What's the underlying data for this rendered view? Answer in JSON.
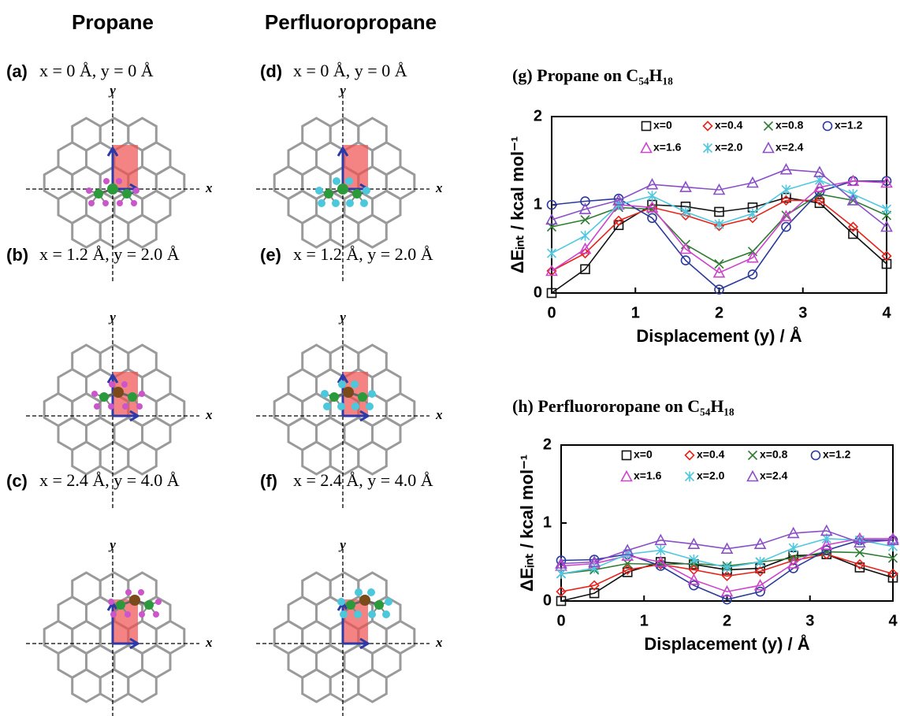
{
  "headings": [
    "Propane",
    "Perfluoropropane"
  ],
  "diagram_axis_labels": {
    "x": "x",
    "y": "y"
  },
  "panels": [
    {
      "tag": "(a)",
      "caption": "x = 0 Å, y = 0 Å"
    },
    {
      "tag": "(b)",
      "caption": "x = 1.2 Å, y = 2.0 Å"
    },
    {
      "tag": "(c)",
      "caption": "x = 2.4 Å, y = 4.0 Å"
    },
    {
      "tag": "(d)",
      "caption": "x = 0 Å, y = 0 Å"
    },
    {
      "tag": "(e)",
      "caption": "x = 1.2 Å, y = 2.0 Å"
    },
    {
      "tag": "(f)",
      "caption": "x = 2.4 Å, y = 4.0 Å"
    }
  ],
  "chart_data": [
    {
      "type": "line",
      "title": "(g) Propane on C₅₄H₁₈",
      "xlabel": "Displacement (y) / Å",
      "ylabel": "ΔEᵢₙₜ / kcal mol⁻¹",
      "x": [
        0,
        0.4,
        0.8,
        1.2,
        1.6,
        2.0,
        2.4,
        2.8,
        3.2,
        3.6,
        4.0
      ],
      "xlim": [
        0,
        4
      ],
      "ylim": [
        0,
        2
      ],
      "xticks": [
        0,
        1,
        2,
        3,
        4
      ],
      "yticks": [
        0,
        1,
        2
      ],
      "series": [
        {
          "name": "x=0",
          "color": "#111111",
          "marker": "square",
          "values": [
            0,
            0.27,
            0.77,
            1.0,
            0.98,
            0.92,
            0.97,
            1.08,
            1.02,
            0.67,
            0.33
          ]
        },
        {
          "name": "x=0.4",
          "color": "#e8221b",
          "marker": "diamond",
          "values": [
            0.25,
            0.45,
            0.82,
            0.97,
            0.88,
            0.76,
            0.85,
            1.05,
            1.05,
            0.75,
            0.42
          ]
        },
        {
          "name": "x=0.8",
          "color": "#2e7d32",
          "marker": "cross",
          "values": [
            0.75,
            0.83,
            0.97,
            0.95,
            0.55,
            0.33,
            0.47,
            0.88,
            1.12,
            1.05,
            0.88
          ]
        },
        {
          "name": "x=1.2",
          "color": "#2b3a9b",
          "marker": "circle",
          "values": [
            1.0,
            1.04,
            1.07,
            0.85,
            0.37,
            0.04,
            0.21,
            0.75,
            1.15,
            1.27,
            1.27
          ]
        },
        {
          "name": "x=1.6",
          "color": "#cc44cc",
          "marker": "triangle",
          "values": [
            0.25,
            0.5,
            1.0,
            0.97,
            0.5,
            0.23,
            0.4,
            0.87,
            1.2,
            1.27,
            1.25
          ]
        },
        {
          "name": "x=2.0",
          "color": "#4fc8e0",
          "marker": "star",
          "values": [
            0.45,
            0.65,
            1.0,
            1.1,
            0.92,
            0.78,
            0.9,
            1.17,
            1.28,
            1.12,
            0.95
          ]
        },
        {
          "name": "x=2.4",
          "color": "#8a4fc8",
          "marker": "triangle",
          "values": [
            0.83,
            0.95,
            1.05,
            1.23,
            1.2,
            1.17,
            1.25,
            1.4,
            1.37,
            1.05,
            0.75
          ]
        }
      ]
    },
    {
      "type": "line",
      "title": "(h) Perfluororopane on C₅₄H₁₈",
      "xlabel": "Displacement (y) / Å",
      "ylabel": "ΔEᵢₙₜ / kcal mol⁻¹",
      "x": [
        0,
        0.4,
        0.8,
        1.2,
        1.6,
        2.0,
        2.4,
        2.8,
        3.2,
        3.6,
        4.0
      ],
      "xlim": [
        0,
        4
      ],
      "ylim": [
        0,
        2
      ],
      "xticks": [
        0,
        1,
        2,
        3,
        4
      ],
      "yticks": [
        0,
        1,
        2
      ],
      "series": [
        {
          "name": "x=0",
          "color": "#111111",
          "marker": "square",
          "values": [
            0,
            0.1,
            0.37,
            0.5,
            0.47,
            0.4,
            0.42,
            0.58,
            0.6,
            0.43,
            0.3
          ]
        },
        {
          "name": "x=0.4",
          "color": "#e8221b",
          "marker": "diamond",
          "values": [
            0.12,
            0.2,
            0.4,
            0.47,
            0.4,
            0.32,
            0.38,
            0.52,
            0.6,
            0.47,
            0.35
          ]
        },
        {
          "name": "x=0.8",
          "color": "#2e7d32",
          "marker": "cross",
          "values": [
            0.35,
            0.4,
            0.48,
            0.47,
            0.48,
            0.45,
            0.5,
            0.55,
            0.63,
            0.62,
            0.55
          ]
        },
        {
          "name": "x=1.2",
          "color": "#2b3a9b",
          "marker": "circle",
          "values": [
            0.52,
            0.53,
            0.6,
            0.45,
            0.2,
            0.02,
            0.12,
            0.42,
            0.65,
            0.78,
            0.78
          ]
        },
        {
          "name": "x=1.6",
          "color": "#cc44cc",
          "marker": "triangle",
          "values": [
            0.45,
            0.48,
            0.58,
            0.5,
            0.27,
            0.12,
            0.2,
            0.48,
            0.72,
            0.8,
            0.8
          ]
        },
        {
          "name": "x=2.0",
          "color": "#4fc8e0",
          "marker": "star",
          "values": [
            0.35,
            0.42,
            0.6,
            0.65,
            0.53,
            0.43,
            0.5,
            0.68,
            0.8,
            0.78,
            0.7
          ]
        },
        {
          "name": "x=2.4",
          "color": "#8a4fc8",
          "marker": "triangle",
          "values": [
            0.48,
            0.5,
            0.65,
            0.78,
            0.73,
            0.67,
            0.73,
            0.87,
            0.9,
            0.75,
            0.78
          ]
        }
      ]
    }
  ]
}
